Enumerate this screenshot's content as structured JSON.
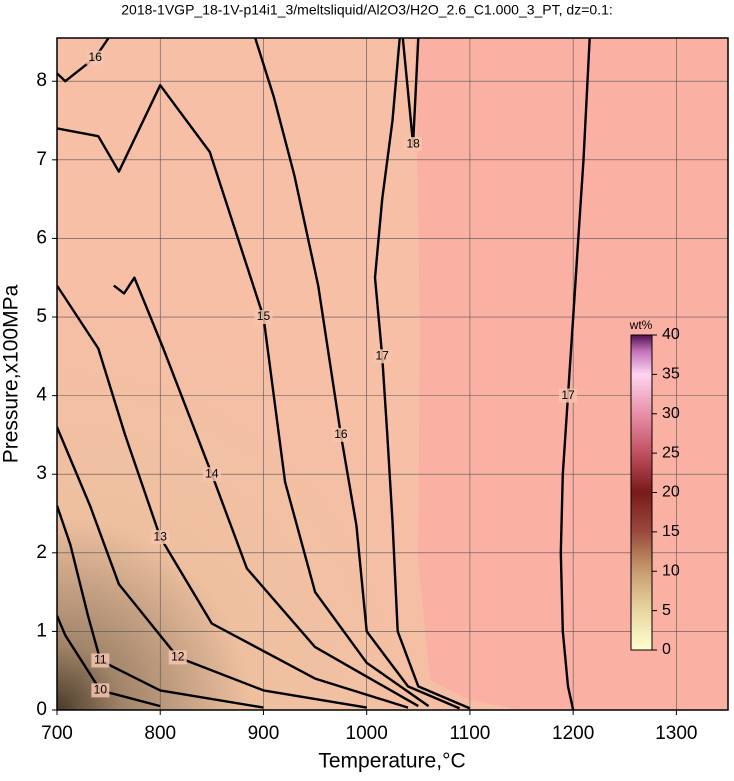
{
  "chart_data": {
    "type": "contour",
    "title": "2018-1VGP_18-1V-p14i1_3/meltsliquid/Al2O3/H2O_2.6_C1.000_3_PT, dz=0.1:",
    "x_label": "Temperature,°C",
    "y_label": "Pressure,x100MPa",
    "xlim": [
      700,
      1350
    ],
    "ylim": [
      0,
      8.55
    ],
    "xticks": [
      700,
      800,
      900,
      1000,
      1100,
      1200,
      1300
    ],
    "yticks": [
      0,
      1,
      2,
      3,
      4,
      5,
      6,
      7,
      8
    ],
    "grid": true,
    "contours": [
      {
        "level": 17,
        "x": [
          1200,
          1195,
          1190,
          1188,
          1190,
          1195,
          1200,
          1205,
          1210,
          1216
        ],
        "y": [
          0,
          0.3,
          1,
          2,
          3,
          4,
          5,
          6,
          7,
          8.55
        ]
      },
      {
        "level": 17,
        "x": [
          1100,
          1050,
          1030,
          1025,
          1020,
          1015,
          1008,
          1015,
          1025,
          1032
        ],
        "y": [
          0.02,
          0.3,
          1,
          2.4,
          3.5,
          4.5,
          5.5,
          6.5,
          7.5,
          8.55
        ]
      },
      {
        "level": 16,
        "x": [
          1090,
          1040,
          1000,
          990,
          975,
          953,
          930,
          910,
          892
        ],
        "y": [
          0.02,
          0.3,
          1,
          2.35,
          3.5,
          5.4,
          6.8,
          7.8,
          8.55
        ]
      },
      {
        "level": 15,
        "x": [
          700,
          740,
          760,
          800,
          848,
          900,
          921,
          950,
          1000,
          1060
        ],
        "y": [
          7.4,
          7.3,
          6.85,
          7.95,
          7.1,
          5,
          2.9,
          1.5,
          0.6,
          0.05
        ]
      },
      {
        "level": 14,
        "x": [
          755,
          765,
          775,
          803,
          850,
          884,
          950,
          1050
        ],
        "y": [
          5.4,
          5.3,
          5.5,
          4.6,
          3,
          1.8,
          0.8,
          0.05
        ]
      },
      {
        "level": 13,
        "x": [
          700,
          740,
          766,
          800,
          850,
          950,
          1040
        ],
        "y": [
          5.4,
          4.6,
          3.5,
          2.2,
          1.1,
          0.4,
          0.03
        ]
      },
      {
        "level": 12,
        "x": [
          700,
          732,
          760,
          817,
          900,
          1000
        ],
        "y": [
          3.6,
          2.6,
          1.6,
          0.67,
          0.25,
          0.03
        ]
      },
      {
        "level": 11,
        "x": [
          700,
          713,
          730,
          742,
          800,
          900
        ],
        "y": [
          2.6,
          2.1,
          1.2,
          0.63,
          0.25,
          0.03
        ]
      },
      {
        "level": 10,
        "x": [
          700,
          708,
          742,
          800
        ],
        "y": [
          1.2,
          0.95,
          0.25,
          0.05
        ]
      },
      {
        "level": 18,
        "x": [
          1035,
          1045,
          1050
        ],
        "y": [
          8.55,
          7.2,
          8.55
        ]
      },
      {
        "level": 16,
        "x": [
          700,
          708,
          737,
          750
        ],
        "y": [
          8.1,
          8.0,
          8.3,
          8.55
        ]
      }
    ],
    "colorbar": {
      "label": "wt%",
      "lim": [
        0,
        40
      ],
      "ticks": [
        0,
        5,
        10,
        15,
        20,
        25,
        30,
        35,
        40
      ]
    }
  }
}
